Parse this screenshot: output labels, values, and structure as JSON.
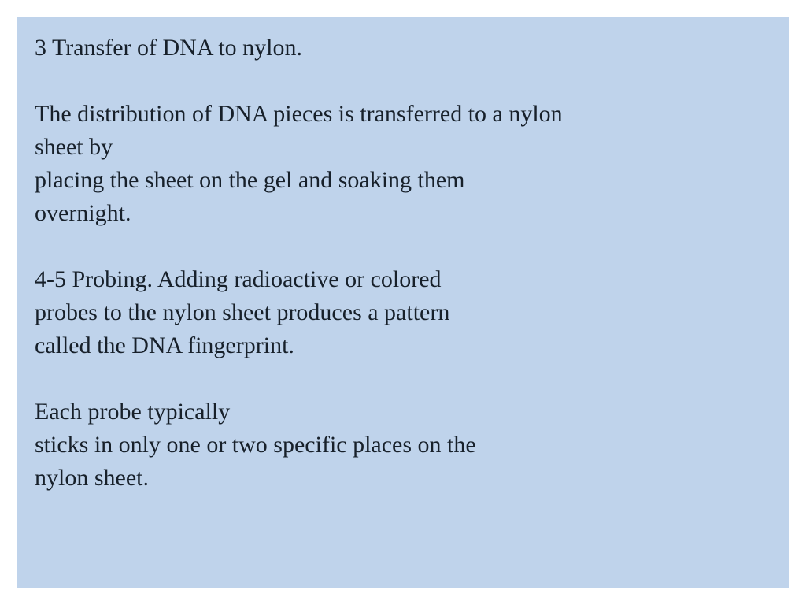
{
  "slide": {
    "background_color": "#bfd3eb",
    "page_background": "#ffffff",
    "text_color": "#17202a",
    "font_family": "Times New Roman",
    "font_size_pt": 30,
    "line_height": 1.4,
    "paragraphs": [
      {
        "lines": [
          "3 Transfer of DNA to nylon."
        ]
      },
      {
        "lines": [
          "The distribution of DNA pieces is transferred to a nylon",
          "sheet by",
          "placing the sheet on the gel and soaking them",
          "overnight."
        ]
      },
      {
        "lines": [
          "4-5 Probing. Adding radioactive or colored",
          "probes to the nylon sheet produces a pattern",
          "called the DNA fingerprint."
        ]
      },
      {
        "lines": [
          "Each probe typically",
          "sticks in only one or two specific places on the",
          "nylon sheet."
        ]
      }
    ]
  }
}
